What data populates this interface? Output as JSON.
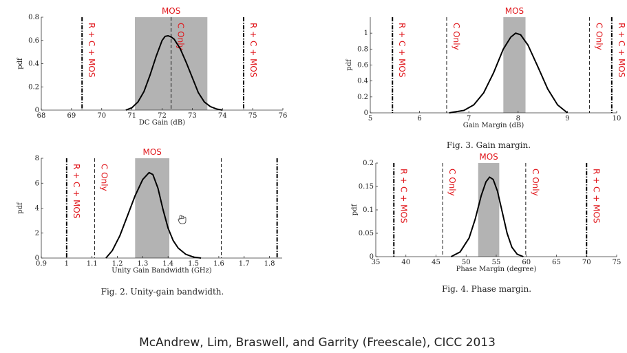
{
  "footer": "McAndrew, Lim, Braswell, and Garrity (Freescale), CICC 2013",
  "colors": {
    "band": "#b3b3b3",
    "annotation": "#e0161b",
    "curve": "#000000"
  },
  "chart_data": [
    {
      "type": "line",
      "xlabel": "DC Gain (dB)",
      "ylabel": "pdf",
      "xlim": [
        68,
        76
      ],
      "ylim": [
        0,
        0.8
      ],
      "xticks": [
        68,
        69,
        70,
        71,
        72,
        73,
        74,
        75,
        76
      ],
      "yticks": [
        0,
        0.2,
        0.4,
        0.6,
        0.8
      ],
      "ytick_labels": [
        "0",
        "0.2",
        "0.4",
        "0.6",
        "0.8"
      ],
      "band": {
        "from": 71.1,
        "to": 73.5,
        "label": "MOS"
      },
      "vlines": [
        {
          "x": 69.35,
          "style": "dashdot",
          "label": "R + C + MOS"
        },
        {
          "x": 72.3,
          "style": "dashed",
          "label": "C Only"
        },
        {
          "x": 74.7,
          "style": "dashdot",
          "label": "R + C + MOS"
        }
      ],
      "x": [
        70.8,
        71.0,
        71.2,
        71.4,
        71.6,
        71.8,
        72.0,
        72.1,
        72.2,
        72.3,
        72.4,
        72.6,
        72.8,
        73.0,
        73.2,
        73.4,
        73.6,
        73.8,
        74.0
      ],
      "y": [
        0.0,
        0.02,
        0.07,
        0.16,
        0.3,
        0.46,
        0.6,
        0.635,
        0.64,
        0.63,
        0.61,
        0.53,
        0.41,
        0.28,
        0.15,
        0.07,
        0.03,
        0.01,
        0.0
      ]
    },
    {
      "type": "line",
      "xlabel": "Gain Margin (dB)",
      "ylabel": "pdf",
      "caption": "Fig. 3.   Gain margin.",
      "xlim": [
        5,
        10
      ],
      "ylim": [
        0,
        1.2
      ],
      "xticks": [
        5,
        6,
        7,
        8,
        9,
        10
      ],
      "yticks": [
        0,
        0.2,
        0.4,
        0.6,
        0.8,
        1
      ],
      "ytick_labels": [
        "0",
        "0.2",
        "0.4",
        "0.6",
        "0.8",
        "1"
      ],
      "band": {
        "from": 7.7,
        "to": 8.15,
        "label": "MOS"
      },
      "vlines": [
        {
          "x": 5.45,
          "style": "dashdot",
          "label": "R + C + MOS"
        },
        {
          "x": 6.55,
          "style": "dashed",
          "label": "C Only"
        },
        {
          "x": 9.45,
          "style": "dashed",
          "label": "C Only"
        },
        {
          "x": 9.9,
          "style": "dashdot",
          "label": "R + C + MOS"
        }
      ],
      "x": [
        6.6,
        6.9,
        7.1,
        7.3,
        7.5,
        7.7,
        7.85,
        7.95,
        8.05,
        8.2,
        8.4,
        8.6,
        8.8,
        9.0
      ],
      "y": [
        0.0,
        0.03,
        0.1,
        0.25,
        0.5,
        0.8,
        0.95,
        1.0,
        0.98,
        0.85,
        0.58,
        0.3,
        0.1,
        0.0
      ]
    },
    {
      "type": "line",
      "xlabel": "Unity Gain Bandwidth (GHz)",
      "ylabel": "pdf",
      "caption": "Fig. 2.   Unity-gain bandwidth.",
      "xlim": [
        0.9,
        1.85
      ],
      "ylim": [
        0,
        8
      ],
      "xticks": [
        0.9,
        1,
        1.1,
        1.2,
        1.3,
        1.4,
        1.5,
        1.6,
        1.7,
        1.8
      ],
      "xtick_labels": [
        "0.9",
        "1",
        "1.1",
        "1.2",
        "1.3",
        "1.4",
        "1.5",
        "1.6",
        "1.7",
        "1.8"
      ],
      "yticks": [
        0,
        2,
        4,
        6,
        8
      ],
      "ytick_labels": [
        "0",
        "2",
        "4",
        "6",
        "8"
      ],
      "band": {
        "from": 1.27,
        "to": 1.405,
        "label": "MOS"
      },
      "vlines": [
        {
          "x": 1.0,
          "style": "dashdot",
          "label": "R + C + MOS"
        },
        {
          "x": 1.11,
          "style": "dashed",
          "label": "C Only"
        },
        {
          "x": 1.61,
          "style": "dashed",
          "label": ""
        },
        {
          "x": 1.83,
          "style": "dashdot",
          "label": ""
        }
      ],
      "x": [
        1.155,
        1.18,
        1.21,
        1.24,
        1.27,
        1.3,
        1.325,
        1.34,
        1.36,
        1.38,
        1.4,
        1.42,
        1.44,
        1.47,
        1.5,
        1.53
      ],
      "y": [
        0.0,
        0.6,
        1.8,
        3.4,
        5.0,
        6.3,
        6.85,
        6.7,
        5.6,
        3.9,
        2.4,
        1.4,
        0.8,
        0.3,
        0.08,
        0.0
      ]
    },
    {
      "type": "line",
      "xlabel": "Phase Margin (degree)",
      "ylabel": "pdf",
      "caption": "Fig. 4.   Phase margin.",
      "xlim": [
        35,
        75
      ],
      "ylim": [
        0,
        0.2
      ],
      "xticks": [
        35,
        40,
        45,
        50,
        55,
        60,
        65,
        70,
        75
      ],
      "yticks": [
        0,
        0.05,
        0.1,
        0.15,
        0.2
      ],
      "ytick_labels": [
        "0",
        "0.05",
        "0.1",
        "0.15",
        "0.2"
      ],
      "band": {
        "from": 52,
        "to": 55.5,
        "label": "MOS"
      },
      "vlines": [
        {
          "x": 38,
          "style": "dashdot",
          "label": "R + C + MOS"
        },
        {
          "x": 46.1,
          "style": "dashed",
          "label": "C Only"
        },
        {
          "x": 59.9,
          "style": "dashed",
          "label": "C Only"
        },
        {
          "x": 70,
          "style": "dashdot",
          "label": "R + C + MOS"
        }
      ],
      "x": [
        47.5,
        49,
        50.5,
        51.5,
        52.5,
        53.3,
        53.9,
        54.5,
        55.2,
        56,
        56.8,
        57.6,
        58.5,
        59.5
      ],
      "y": [
        0.0,
        0.01,
        0.04,
        0.08,
        0.13,
        0.16,
        0.17,
        0.165,
        0.14,
        0.095,
        0.05,
        0.02,
        0.005,
        0.0
      ]
    }
  ]
}
